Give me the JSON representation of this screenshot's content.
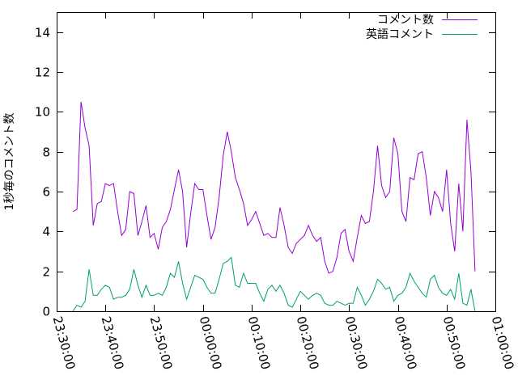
{
  "chart_data": {
    "type": "line",
    "title": "",
    "xlabel": "",
    "ylabel": "1秒毎のコメント数",
    "x_tick_labels": [
      "23:30:00",
      "23:40:00",
      "23:50:00",
      "00:00:00",
      "00:10:00",
      "00:20:00",
      "00:30:00",
      "00:40:00",
      "00:50:00",
      "01:00:00"
    ],
    "xlim": [
      "23:30:00",
      "01:00:00"
    ],
    "y_ticks": [
      0,
      2,
      4,
      6,
      8,
      10,
      12,
      14
    ],
    "ylim": [
      0,
      15
    ],
    "grid": false,
    "legend_position": "top-right",
    "series": [
      {
        "name": "コメント数",
        "color": "#9400d3",
        "points": [
          [
            "23:33:20",
            5.0
          ],
          [
            "23:34:10",
            5.1
          ],
          [
            "23:35:00",
            10.5
          ],
          [
            "23:35:50",
            9.2
          ],
          [
            "23:36:40",
            8.3
          ],
          [
            "23:37:30",
            4.3
          ],
          [
            "23:38:20",
            5.4
          ],
          [
            "23:39:10",
            5.5
          ],
          [
            "23:40:00",
            6.4
          ],
          [
            "23:40:50",
            6.3
          ],
          [
            "23:41:40",
            6.4
          ],
          [
            "23:42:30",
            5.0
          ],
          [
            "23:43:20",
            3.8
          ],
          [
            "23:44:10",
            4.1
          ],
          [
            "23:45:00",
            6.0
          ],
          [
            "23:45:50",
            5.9
          ],
          [
            "23:46:40",
            3.8
          ],
          [
            "23:47:30",
            4.5
          ],
          [
            "23:48:20",
            5.3
          ],
          [
            "23:49:10",
            3.7
          ],
          [
            "23:50:00",
            3.9
          ],
          [
            "23:50:50",
            3.1
          ],
          [
            "23:51:40",
            4.2
          ],
          [
            "23:52:30",
            4.5
          ],
          [
            "23:53:20",
            5.1
          ],
          [
            "23:54:10",
            6.1
          ],
          [
            "23:55:00",
            7.1
          ],
          [
            "23:55:50",
            6.0
          ],
          [
            "23:56:40",
            3.2
          ],
          [
            "23:57:30",
            4.9
          ],
          [
            "23:58:20",
            6.4
          ],
          [
            "23:59:10",
            6.1
          ],
          [
            "00:00:00",
            6.1
          ],
          [
            "00:00:50",
            4.8
          ],
          [
            "00:01:40",
            3.6
          ],
          [
            "00:02:30",
            4.2
          ],
          [
            "00:03:20",
            5.7
          ],
          [
            "00:04:10",
            7.8
          ],
          [
            "00:05:00",
            9.0
          ],
          [
            "00:05:50",
            8.0
          ],
          [
            "00:06:40",
            6.7
          ],
          [
            "00:07:30",
            6.1
          ],
          [
            "00:08:20",
            5.4
          ],
          [
            "00:09:10",
            4.3
          ],
          [
            "00:10:00",
            4.6
          ],
          [
            "00:10:50",
            5.0
          ],
          [
            "00:11:40",
            4.4
          ],
          [
            "00:12:30",
            3.8
          ],
          [
            "00:13:20",
            3.9
          ],
          [
            "00:14:10",
            3.7
          ],
          [
            "00:15:00",
            3.7
          ],
          [
            "00:15:50",
            5.2
          ],
          [
            "00:16:40",
            4.3
          ],
          [
            "00:17:30",
            3.2
          ],
          [
            "00:18:20",
            2.9
          ],
          [
            "00:19:10",
            3.4
          ],
          [
            "00:20:00",
            3.6
          ],
          [
            "00:20:50",
            3.8
          ],
          [
            "00:21:40",
            4.3
          ],
          [
            "00:22:30",
            3.8
          ],
          [
            "00:23:20",
            3.5
          ],
          [
            "00:24:10",
            3.7
          ],
          [
            "00:25:00",
            2.5
          ],
          [
            "00:25:50",
            1.9
          ],
          [
            "00:26:40",
            2.0
          ],
          [
            "00:27:30",
            2.7
          ],
          [
            "00:28:20",
            3.9
          ],
          [
            "00:29:10",
            4.1
          ],
          [
            "00:30:00",
            3.0
          ],
          [
            "00:30:50",
            2.5
          ],
          [
            "00:31:40",
            3.7
          ],
          [
            "00:32:30",
            4.8
          ],
          [
            "00:33:20",
            4.4
          ],
          [
            "00:34:10",
            4.5
          ],
          [
            "00:35:00",
            6.0
          ],
          [
            "00:35:50",
            8.3
          ],
          [
            "00:36:40",
            6.3
          ],
          [
            "00:37:30",
            5.7
          ],
          [
            "00:38:20",
            6.0
          ],
          [
            "00:39:10",
            8.7
          ],
          [
            "00:40:00",
            7.9
          ],
          [
            "00:40:50",
            5.0
          ],
          [
            "00:41:40",
            4.5
          ],
          [
            "00:42:30",
            6.7
          ],
          [
            "00:43:20",
            6.6
          ],
          [
            "00:44:10",
            7.9
          ],
          [
            "00:45:00",
            8.0
          ],
          [
            "00:45:50",
            6.7
          ],
          [
            "00:46:40",
            4.8
          ],
          [
            "00:47:30",
            6.0
          ],
          [
            "00:48:20",
            5.7
          ],
          [
            "00:49:10",
            5.0
          ],
          [
            "00:50:00",
            7.1
          ],
          [
            "00:50:50",
            4.4
          ],
          [
            "00:51:40",
            3.0
          ],
          [
            "00:52:30",
            6.4
          ],
          [
            "00:53:20",
            4.0
          ],
          [
            "00:54:10",
            9.6
          ],
          [
            "00:55:00",
            7.0
          ],
          [
            "00:55:50",
            2.0
          ]
        ]
      },
      {
        "name": "英語コメント",
        "color": "#009e73",
        "points": [
          [
            "23:33:20",
            0.0
          ],
          [
            "23:34:10",
            0.3
          ],
          [
            "23:35:00",
            0.2
          ],
          [
            "23:35:50",
            0.5
          ],
          [
            "23:36:40",
            2.1
          ],
          [
            "23:37:30",
            0.8
          ],
          [
            "23:38:20",
            0.8
          ],
          [
            "23:39:10",
            1.1
          ],
          [
            "23:40:00",
            1.3
          ],
          [
            "23:40:50",
            1.2
          ],
          [
            "23:41:40",
            0.6
          ],
          [
            "23:42:30",
            0.7
          ],
          [
            "23:43:20",
            0.7
          ],
          [
            "23:44:10",
            0.8
          ],
          [
            "23:45:00",
            1.1
          ],
          [
            "23:45:50",
            2.1
          ],
          [
            "23:46:40",
            1.3
          ],
          [
            "23:47:30",
            0.7
          ],
          [
            "23:48:20",
            1.3
          ],
          [
            "23:49:10",
            0.8
          ],
          [
            "23:50:00",
            0.8
          ],
          [
            "23:50:50",
            0.9
          ],
          [
            "23:51:40",
            0.8
          ],
          [
            "23:52:30",
            1.2
          ],
          [
            "23:53:20",
            1.9
          ],
          [
            "23:54:10",
            1.7
          ],
          [
            "23:55:00",
            2.5
          ],
          [
            "23:55:50",
            1.4
          ],
          [
            "23:56:40",
            0.6
          ],
          [
            "23:57:30",
            1.2
          ],
          [
            "23:58:20",
            1.8
          ],
          [
            "23:59:10",
            1.7
          ],
          [
            "00:00:00",
            1.6
          ],
          [
            "00:00:50",
            1.2
          ],
          [
            "00:01:40",
            0.9
          ],
          [
            "00:02:30",
            0.9
          ],
          [
            "00:03:20",
            1.6
          ],
          [
            "00:04:10",
            2.4
          ],
          [
            "00:05:00",
            2.5
          ],
          [
            "00:05:50",
            2.7
          ],
          [
            "00:06:40",
            1.3
          ],
          [
            "00:07:30",
            1.2
          ],
          [
            "00:08:20",
            1.9
          ],
          [
            "00:09:10",
            1.4
          ],
          [
            "00:10:00",
            1.4
          ],
          [
            "00:10:50",
            1.4
          ],
          [
            "00:11:40",
            0.9
          ],
          [
            "00:12:30",
            0.5
          ],
          [
            "00:13:20",
            1.1
          ],
          [
            "00:14:10",
            1.3
          ],
          [
            "00:15:00",
            1.0
          ],
          [
            "00:15:50",
            1.3
          ],
          [
            "00:16:40",
            0.9
          ],
          [
            "00:17:30",
            0.3
          ],
          [
            "00:18:20",
            0.2
          ],
          [
            "00:19:10",
            0.6
          ],
          [
            "00:20:00",
            1.0
          ],
          [
            "00:20:50",
            0.8
          ],
          [
            "00:21:40",
            0.6
          ],
          [
            "00:22:30",
            0.8
          ],
          [
            "00:23:20",
            0.9
          ],
          [
            "00:24:10",
            0.8
          ],
          [
            "00:25:00",
            0.4
          ],
          [
            "00:25:50",
            0.3
          ],
          [
            "00:26:40",
            0.3
          ],
          [
            "00:27:30",
            0.5
          ],
          [
            "00:28:20",
            0.4
          ],
          [
            "00:29:10",
            0.3
          ],
          [
            "00:30:00",
            0.4
          ],
          [
            "00:30:50",
            0.4
          ],
          [
            "00:31:40",
            1.2
          ],
          [
            "00:32:30",
            0.8
          ],
          [
            "00:33:20",
            0.3
          ],
          [
            "00:34:10",
            0.6
          ],
          [
            "00:35:00",
            1.0
          ],
          [
            "00:35:50",
            1.6
          ],
          [
            "00:36:40",
            1.4
          ],
          [
            "00:37:30",
            1.1
          ],
          [
            "00:38:20",
            1.2
          ],
          [
            "00:39:10",
            0.5
          ],
          [
            "00:40:00",
            0.8
          ],
          [
            "00:40:50",
            0.9
          ],
          [
            "00:41:40",
            1.2
          ],
          [
            "00:42:30",
            1.9
          ],
          [
            "00:43:20",
            1.5
          ],
          [
            "00:44:10",
            1.2
          ],
          [
            "00:45:00",
            0.9
          ],
          [
            "00:45:50",
            0.7
          ],
          [
            "00:46:40",
            1.6
          ],
          [
            "00:47:30",
            1.8
          ],
          [
            "00:48:20",
            1.2
          ],
          [
            "00:49:10",
            0.9
          ],
          [
            "00:50:00",
            0.8
          ],
          [
            "00:50:50",
            1.1
          ],
          [
            "00:51:40",
            0.6
          ],
          [
            "00:52:30",
            1.9
          ],
          [
            "00:53:20",
            0.4
          ],
          [
            "00:54:10",
            0.3
          ],
          [
            "00:55:00",
            1.1
          ],
          [
            "00:55:50",
            0.0
          ]
        ]
      }
    ]
  }
}
